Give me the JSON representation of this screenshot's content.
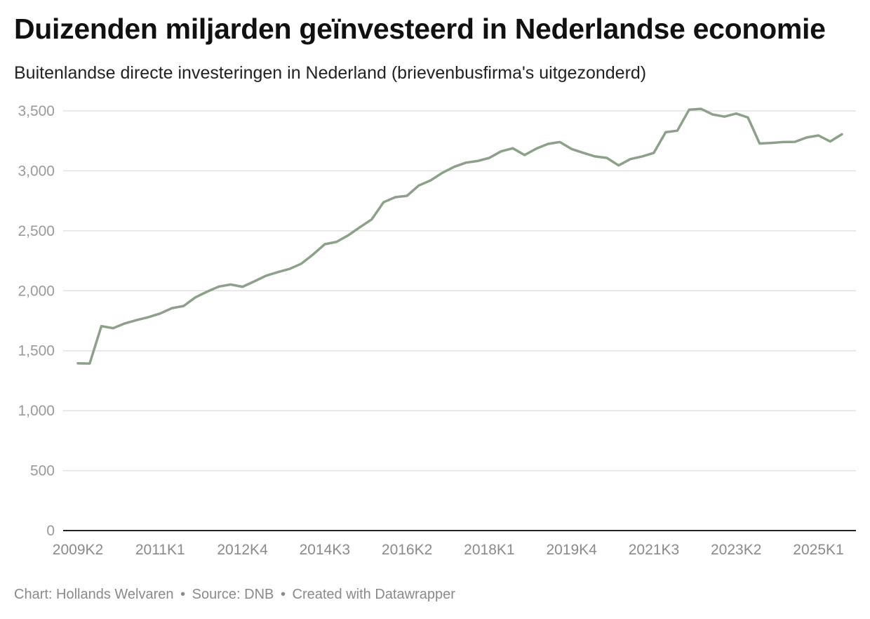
{
  "header": {
    "title": "Duizenden miljarden geïnvesteerd in Nederlandse economie",
    "subtitle": "Buitenlandse directe investeringen in Nederland (brievenbusfirma's uitgezonderd)"
  },
  "footer": {
    "chart_credit": "Chart: Hollands Welvaren",
    "source": "Source: DNB",
    "created_with": "Created with Datawrapper",
    "separator": "•"
  },
  "colors": {
    "line": "#8da08a",
    "grid": "#e2e2e2",
    "axis": "#222222"
  },
  "chart_data": {
    "type": "line",
    "title": "Duizenden miljarden geïnvesteerd in Nederlandse economie",
    "subtitle": "Buitenlandse directe investeringen in Nederland (brievenbusfirma's uitgezonderd)",
    "xlabel": "",
    "ylabel": "",
    "ylim": [
      0,
      3500
    ],
    "yticks": [
      0,
      500,
      1000,
      1500,
      2000,
      2500,
      3000,
      3500
    ],
    "ytick_labels": [
      "0",
      "500",
      "1,000",
      "1,500",
      "2,000",
      "2,500",
      "3,000",
      "3,500"
    ],
    "xtick_labels": [
      "2009K2",
      "2011K1",
      "2012K4",
      "2014K3",
      "2016K2",
      "2018K1",
      "2019K4",
      "2021K3",
      "2023K2",
      "2025K1"
    ],
    "xtick_indices": [
      0,
      7,
      14,
      21,
      28,
      35,
      42,
      49,
      56,
      63
    ],
    "grid": true,
    "legend": "none",
    "series": [
      {
        "name": "Buitenlandse directe investeringen",
        "values": [
          1395,
          1393,
          1705,
          1688,
          1728,
          1755,
          1780,
          1810,
          1855,
          1873,
          1945,
          1993,
          2035,
          2052,
          2033,
          2078,
          2125,
          2155,
          2182,
          2225,
          2302,
          2388,
          2408,
          2462,
          2530,
          2595,
          2738,
          2780,
          2792,
          2878,
          2920,
          2983,
          3033,
          3068,
          3082,
          3108,
          3162,
          3188,
          3132,
          3185,
          3225,
          3240,
          3182,
          3150,
          3120,
          3108,
          3045,
          3098,
          3120,
          3150,
          3322,
          3335,
          3510,
          3517,
          3470,
          3452,
          3478,
          3445,
          3228,
          3233,
          3240,
          3242,
          3278,
          3295,
          3245,
          3305
        ]
      }
    ]
  }
}
